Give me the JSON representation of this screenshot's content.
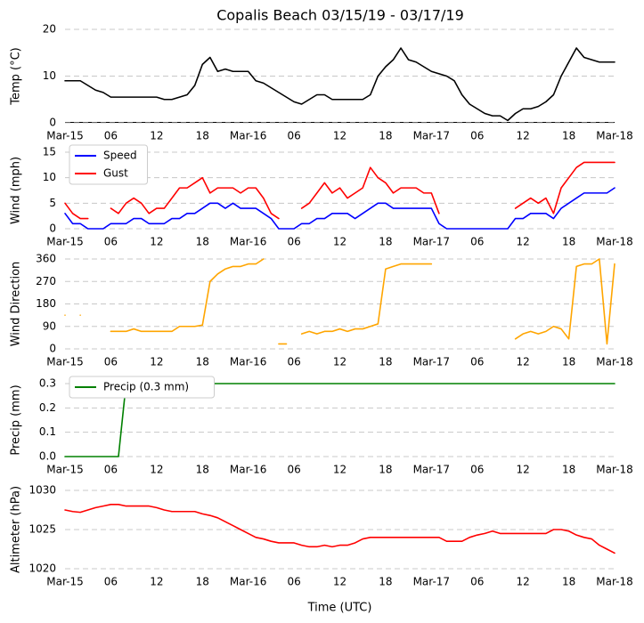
{
  "title": "Copalis Beach 03/15/19 - 03/17/19",
  "chart_data": [
    {
      "type": "line",
      "ylabel": "Temp (°C)",
      "x": [
        0,
        1,
        2,
        3,
        4,
        5,
        6,
        7,
        8,
        9,
        10,
        11,
        12,
        13,
        14,
        15,
        16,
        17,
        18,
        19,
        20,
        21,
        22,
        23,
        24,
        25,
        26,
        27,
        28,
        29,
        30,
        31,
        32,
        33,
        34,
        35,
        36,
        37,
        38,
        39,
        40,
        41,
        42,
        43,
        44,
        45,
        46,
        47,
        48,
        49,
        50,
        51,
        52,
        53,
        54,
        55,
        56,
        57,
        58,
        59,
        60,
        61,
        62,
        63,
        64,
        65,
        66,
        67,
        68,
        69,
        70,
        71,
        72
      ],
      "series": [
        {
          "name": "Temp",
          "color": "#000000",
          "values": [
            9,
            9,
            9,
            8,
            7,
            6.5,
            5.5,
            5.5,
            5.5,
            5.5,
            5.5,
            5.5,
            5.5,
            5,
            5,
            5.5,
            6,
            8,
            12.5,
            14,
            11,
            11.5,
            11,
            11,
            11,
            9,
            8.5,
            7.5,
            6.5,
            5.5,
            4.5,
            4,
            5,
            6,
            6,
            5,
            5,
            5,
            5,
            5,
            6,
            10,
            12,
            13.5,
            16,
            13.5,
            13,
            12,
            11,
            10.5,
            10,
            9,
            6,
            4,
            3,
            2,
            1.5,
            1.5,
            0.5,
            2,
            3,
            3,
            3.5,
            4.5,
            6,
            10,
            13,
            16,
            14,
            13.5,
            13,
            13,
            13
          ]
        }
      ],
      "xlim": [
        0,
        72
      ],
      "ylim": [
        0,
        20
      ],
      "yticks": [
        0,
        10,
        20
      ],
      "grid": true,
      "xticks": [
        {
          "value": 0,
          "label": "Mar-15"
        },
        {
          "value": 6,
          "label": "06"
        },
        {
          "value": 12,
          "label": "12"
        },
        {
          "value": 18,
          "label": "18"
        },
        {
          "value": 24,
          "label": "Mar-16"
        },
        {
          "value": 30,
          "label": "06"
        },
        {
          "value": 36,
          "label": "12"
        },
        {
          "value": 42,
          "label": "18"
        },
        {
          "value": 48,
          "label": "Mar-17"
        },
        {
          "value": 54,
          "label": "06"
        },
        {
          "value": 60,
          "label": "12"
        },
        {
          "value": 66,
          "label": "18"
        },
        {
          "value": 72,
          "label": "Mar-18"
        }
      ]
    },
    {
      "type": "line",
      "ylabel": "Wind (mph)",
      "legend": "upper left",
      "x": [
        0,
        1,
        2,
        3,
        4,
        5,
        6,
        7,
        8,
        9,
        10,
        11,
        12,
        13,
        14,
        15,
        16,
        17,
        18,
        19,
        20,
        21,
        22,
        23,
        24,
        25,
        26,
        27,
        28,
        29,
        30,
        31,
        32,
        33,
        34,
        35,
        36,
        37,
        38,
        39,
        40,
        41,
        42,
        43,
        44,
        45,
        46,
        47,
        48,
        49,
        50,
        51,
        52,
        53,
        54,
        55,
        56,
        57,
        58,
        59,
        60,
        61,
        62,
        63,
        64,
        65,
        66,
        67,
        68,
        69,
        70,
        71,
        72
      ],
      "series": [
        {
          "name": "Speed",
          "color": "#0000ff",
          "values": [
            3,
            1,
            1,
            0,
            0,
            0,
            1,
            1,
            1,
            2,
            2,
            1,
            1,
            1,
            2,
            2,
            3,
            3,
            4,
            5,
            5,
            4,
            5,
            4,
            4,
            4,
            3,
            2,
            0,
            0,
            0,
            1,
            1,
            2,
            2,
            3,
            3,
            3,
            2,
            3,
            4,
            5,
            5,
            4,
            4,
            4,
            4,
            4,
            4,
            1,
            0,
            0,
            0,
            0,
            0,
            0,
            0,
            0,
            0,
            2,
            2,
            3,
            3,
            3,
            2,
            4,
            5,
            6,
            7,
            7,
            7,
            7,
            8
          ]
        },
        {
          "name": "Gust",
          "color": "#ff0000",
          "values": [
            5,
            3,
            2,
            2,
            null,
            null,
            4,
            3,
            5,
            6,
            5,
            3,
            4,
            4,
            6,
            8,
            8,
            9,
            10,
            7,
            8,
            8,
            8,
            7,
            8,
            8,
            6,
            3,
            2,
            null,
            null,
            4,
            5,
            7,
            9,
            7,
            8,
            6,
            7,
            8,
            12,
            10,
            9,
            7,
            8,
            8,
            8,
            7,
            7,
            3,
            null,
            null,
            null,
            null,
            null,
            null,
            null,
            null,
            null,
            4,
            5,
            6,
            5,
            6,
            3,
            8,
            10,
            12,
            13,
            13,
            13,
            13,
            13
          ]
        }
      ],
      "xlim": [
        0,
        72
      ],
      "ylim": [
        0,
        15
      ],
      "yticks": [
        0,
        5,
        10,
        15
      ],
      "grid": true,
      "xticks": [
        {
          "value": 0,
          "label": "Mar-15"
        },
        {
          "value": 6,
          "label": "06"
        },
        {
          "value": 12,
          "label": "12"
        },
        {
          "value": 18,
          "label": "18"
        },
        {
          "value": 24,
          "label": "Mar-16"
        },
        {
          "value": 30,
          "label": "06"
        },
        {
          "value": 36,
          "label": "12"
        },
        {
          "value": 42,
          "label": "18"
        },
        {
          "value": 48,
          "label": "Mar-17"
        },
        {
          "value": 54,
          "label": "06"
        },
        {
          "value": 60,
          "label": "12"
        },
        {
          "value": 66,
          "label": "18"
        },
        {
          "value": 72,
          "label": "Mar-18"
        }
      ]
    },
    {
      "type": "line",
      "ylabel": "Wind Direction",
      "x": [
        0,
        1,
        2,
        3,
        4,
        5,
        6,
        7,
        8,
        9,
        10,
        11,
        12,
        13,
        14,
        15,
        16,
        17,
        18,
        19,
        20,
        21,
        22,
        23,
        24,
        25,
        26,
        27,
        28,
        29,
        30,
        31,
        32,
        33,
        34,
        35,
        36,
        37,
        38,
        39,
        40,
        41,
        42,
        43,
        44,
        45,
        46,
        47,
        48,
        49,
        50,
        51,
        52,
        53,
        54,
        55,
        56,
        57,
        58,
        59,
        60,
        61,
        62,
        63,
        64,
        65,
        66,
        67,
        68,
        69,
        70,
        71,
        72
      ],
      "series": [
        {
          "name": "Direction",
          "color": "#ffa500",
          "values": [
            135,
            null,
            135,
            null,
            null,
            null,
            70,
            70,
            70,
            80,
            70,
            70,
            70,
            70,
            70,
            90,
            90,
            90,
            95,
            270,
            300,
            320,
            330,
            330,
            340,
            340,
            360,
            null,
            20,
            20,
            null,
            60,
            70,
            60,
            70,
            70,
            80,
            70,
            80,
            80,
            90,
            100,
            320,
            330,
            340,
            340,
            340,
            340,
            340,
            null,
            null,
            null,
            null,
            null,
            null,
            null,
            null,
            null,
            null,
            40,
            60,
            70,
            60,
            70,
            90,
            80,
            40,
            330,
            340,
            340,
            360,
            20,
            340
          ]
        }
      ],
      "xlim": [
        0,
        72
      ],
      "ylim": [
        0,
        360
      ],
      "yticks": [
        0,
        90,
        180,
        270,
        360
      ],
      "grid": true,
      "xticks": [
        {
          "value": 0,
          "label": "Mar-15"
        },
        {
          "value": 6,
          "label": "06"
        },
        {
          "value": 12,
          "label": "12"
        },
        {
          "value": 18,
          "label": "18"
        },
        {
          "value": 24,
          "label": "Mar-16"
        },
        {
          "value": 30,
          "label": "06"
        },
        {
          "value": 36,
          "label": "12"
        },
        {
          "value": 42,
          "label": "18"
        },
        {
          "value": 48,
          "label": "Mar-17"
        },
        {
          "value": 54,
          "label": "06"
        },
        {
          "value": 60,
          "label": "12"
        },
        {
          "value": 66,
          "label": "18"
        },
        {
          "value": 72,
          "label": "Mar-18"
        }
      ]
    },
    {
      "type": "line",
      "ylabel": "Precip (mm)",
      "legend": "upper left",
      "x": [
        0,
        1,
        2,
        3,
        4,
        5,
        6,
        7,
        8,
        9,
        10,
        11,
        12,
        13,
        14,
        15,
        16,
        17,
        18,
        19,
        20,
        21,
        22,
        23,
        24,
        25,
        26,
        27,
        28,
        29,
        30,
        31,
        32,
        33,
        34,
        35,
        36,
        37,
        38,
        39,
        40,
        41,
        42,
        43,
        44,
        45,
        46,
        47,
        48,
        49,
        50,
        51,
        52,
        53,
        54,
        55,
        56,
        57,
        58,
        59,
        60,
        61,
        62,
        63,
        64,
        65,
        66,
        67,
        68,
        69,
        70,
        71,
        72
      ],
      "series": [
        {
          "name": "Precip (0.3 mm)",
          "color": "#008000",
          "values": [
            0,
            0,
            0,
            0,
            0,
            0,
            0,
            0,
            0.3,
            0.3,
            0.3,
            0.3,
            0.3,
            0.3,
            0.3,
            0.3,
            0.3,
            0.3,
            0.3,
            0.3,
            0.3,
            0.3,
            0.3,
            0.3,
            0.3,
            0.3,
            0.3,
            0.3,
            0.3,
            0.3,
            0.3,
            0.3,
            0.3,
            0.3,
            0.3,
            0.3,
            0.3,
            0.3,
            0.3,
            0.3,
            0.3,
            0.3,
            0.3,
            0.3,
            0.3,
            0.3,
            0.3,
            0.3,
            0.3,
            0.3,
            0.3,
            0.3,
            0.3,
            0.3,
            0.3,
            0.3,
            0.3,
            0.3,
            0.3,
            0.3,
            0.3,
            0.3,
            0.3,
            0.3,
            0.3,
            0.3,
            0.3,
            0.3,
            0.3,
            0.3,
            0.3,
            0.3,
            0.3
          ]
        }
      ],
      "xlim": [
        0,
        72
      ],
      "ylim": [
        0,
        0.3
      ],
      "yticks": [
        {
          "value": 0,
          "label": "0.0"
        },
        0.1,
        0.2,
        0.3
      ],
      "grid": true,
      "xticks": [
        {
          "value": 0,
          "label": "Mar-15"
        },
        {
          "value": 6,
          "label": "06"
        },
        {
          "value": 12,
          "label": "12"
        },
        {
          "value": 18,
          "label": "18"
        },
        {
          "value": 24,
          "label": "Mar-16"
        },
        {
          "value": 30,
          "label": "06"
        },
        {
          "value": 36,
          "label": "12"
        },
        {
          "value": 42,
          "label": "18"
        },
        {
          "value": 48,
          "label": "Mar-17"
        },
        {
          "value": 54,
          "label": "06"
        },
        {
          "value": 60,
          "label": "12"
        },
        {
          "value": 66,
          "label": "18"
        },
        {
          "value": 72,
          "label": "Mar-18"
        }
      ]
    },
    {
      "type": "line",
      "ylabel": "Altimeter (hPa)",
      "xlabel": "Time (UTC)",
      "x": [
        0,
        1,
        2,
        3,
        4,
        5,
        6,
        7,
        8,
        9,
        10,
        11,
        12,
        13,
        14,
        15,
        16,
        17,
        18,
        19,
        20,
        21,
        22,
        23,
        24,
        25,
        26,
        27,
        28,
        29,
        30,
        31,
        32,
        33,
        34,
        35,
        36,
        37,
        38,
        39,
        40,
        41,
        42,
        43,
        44,
        45,
        46,
        47,
        48,
        49,
        50,
        51,
        52,
        53,
        54,
        55,
        56,
        57,
        58,
        59,
        60,
        61,
        62,
        63,
        64,
        65,
        66,
        67,
        68,
        69,
        70,
        71,
        72
      ],
      "series": [
        {
          "name": "Altimeter",
          "color": "#ff0000",
          "values": [
            1027.5,
            1027.3,
            1027.2,
            1027.5,
            1027.8,
            1028,
            1028.2,
            1028.2,
            1028,
            1028,
            1028,
            1028,
            1027.8,
            1027.5,
            1027.3,
            1027.3,
            1027.3,
            1027.3,
            1027,
            1026.8,
            1026.5,
            1026,
            1025.5,
            1025,
            1024.5,
            1024,
            1023.8,
            1023.5,
            1023.3,
            1023.3,
            1023.3,
            1023,
            1022.8,
            1022.8,
            1023,
            1022.8,
            1023,
            1023,
            1023.3,
            1023.8,
            1024,
            1024,
            1024,
            1024,
            1024,
            1024,
            1024,
            1024,
            1024,
            1024,
            1023.5,
            1023.5,
            1023.5,
            1024,
            1024.3,
            1024.5,
            1024.8,
            1024.5,
            1024.5,
            1024.5,
            1024.5,
            1024.5,
            1024.5,
            1024.5,
            1025,
            1025,
            1024.8,
            1024.3,
            1024,
            1023.8,
            1023,
            1022.5,
            1022
          ]
        }
      ],
      "xlim": [
        0,
        72
      ],
      "ylim": [
        1020,
        1030
      ],
      "yticks": [
        1020,
        1025,
        1030
      ],
      "grid": true,
      "xticks": [
        {
          "value": 0,
          "label": "Mar-15"
        },
        {
          "value": 6,
          "label": "06"
        },
        {
          "value": 12,
          "label": "12"
        },
        {
          "value": 18,
          "label": "18"
        },
        {
          "value": 24,
          "label": "Mar-16"
        },
        {
          "value": 30,
          "label": "06"
        },
        {
          "value": 36,
          "label": "12"
        },
        {
          "value": 42,
          "label": "18"
        },
        {
          "value": 48,
          "label": "Mar-17"
        },
        {
          "value": 54,
          "label": "06"
        },
        {
          "value": 60,
          "label": "12"
        },
        {
          "value": 66,
          "label": "18"
        },
        {
          "value": 72,
          "label": "Mar-18"
        }
      ]
    }
  ]
}
